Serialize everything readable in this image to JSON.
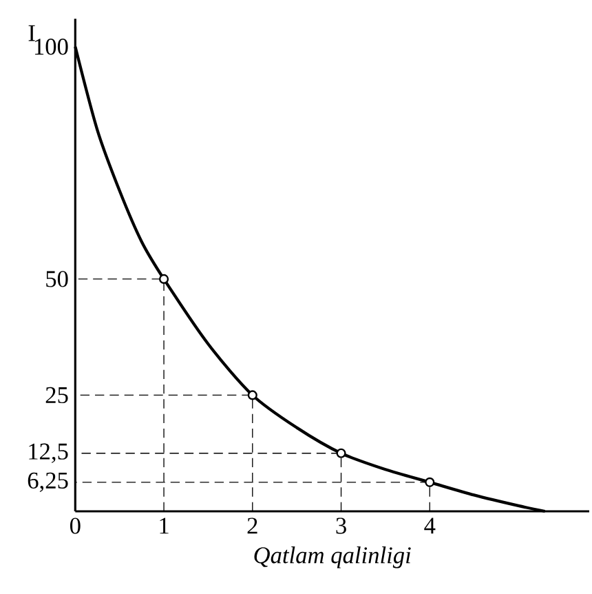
{
  "chart_data": {
    "type": "line",
    "xlabel": "*Qatlam qalinligi*",
    "ylabel": "I",
    "xlim": [
      0,
      5.8
    ],
    "ylim": [
      0,
      106
    ],
    "xticks": [
      0,
      1,
      2,
      3,
      4
    ],
    "yticks": [
      100,
      50,
      25,
      {
        "value": 12.5,
        "label": "12,5"
      },
      {
        "value": 6.25,
        "label": "6,25"
      }
    ],
    "series": [
      {
        "color": "#000000",
        "marker": "none",
        "line_style": "solid",
        "x": [
          0,
          0.25,
          0.5,
          0.75,
          1,
          1.5,
          2,
          2.5,
          3,
          3.5,
          4,
          4.5,
          5,
          5.3
        ],
        "values": [
          100,
          82,
          69,
          58,
          50,
          36,
          25,
          18,
          12.5,
          9,
          6.25,
          3.5,
          1.2,
          0
        ]
      },
      {
        "color": "#000000",
        "marker": "none",
        "line_style": "dashed",
        "x": [
          1,
          1,
          0
        ],
        "values": [
          0,
          50,
          50
        ]
      },
      {
        "color": "#000000",
        "marker": "none",
        "line_style": "dashed",
        "x": [
          2,
          2,
          0
        ],
        "values": [
          0,
          25,
          25
        ]
      },
      {
        "color": "#000000",
        "marker": "none",
        "line_style": "dashed",
        "x": [
          3,
          3,
          0
        ],
        "values": [
          0,
          12.5,
          12.5
        ]
      },
      {
        "color": "#000000",
        "marker": "none",
        "line_style": "dashed",
        "x": [
          4,
          4,
          0
        ],
        "values": [
          0,
          6.25,
          6.25
        ]
      },
      {
        "type": "scatter",
        "color": "#000000",
        "marker": "circle",
        "x": [
          1,
          2,
          3,
          4
        ],
        "values": [
          50,
          25,
          12.5,
          6.25
        ]
      }
    ]
  }
}
